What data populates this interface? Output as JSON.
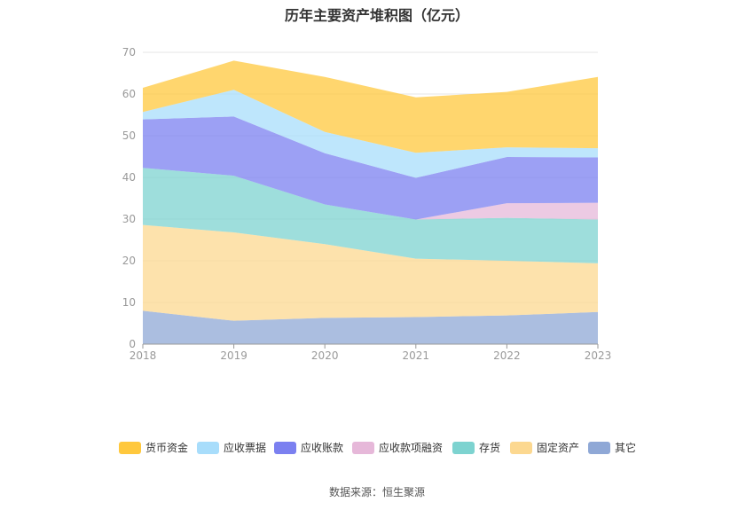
{
  "chart_data": {
    "type": "area",
    "title": "历年主要资产堆积图（亿元）",
    "x": [
      "2018",
      "2019",
      "2020",
      "2021",
      "2022",
      "2023"
    ],
    "ylim": [
      0,
      70
    ],
    "yticks": [
      "0",
      "10",
      "20",
      "30",
      "40",
      "50",
      "60",
      "70"
    ],
    "stacked": true,
    "grid": true,
    "legend_position": "bottom",
    "series": [
      {
        "name": "其它",
        "color": "#8fa8d6",
        "values": [
          8.0,
          5.6,
          6.3,
          6.5,
          6.9,
          7.7
        ]
      },
      {
        "name": "固定资产",
        "color": "#fcd890",
        "values": [
          20.6,
          21.2,
          17.7,
          14.0,
          13.1,
          11.7
        ]
      },
      {
        "name": "存货",
        "color": "#7dd3d0",
        "values": [
          13.7,
          13.6,
          9.5,
          9.4,
          10.3,
          10.5
        ]
      },
      {
        "name": "应收款项融资",
        "color": "#e6b8d9",
        "values": [
          0,
          0,
          0,
          0,
          3.5,
          4.0
        ]
      },
      {
        "name": "应收账款",
        "color": "#7b80f0",
        "values": [
          11.6,
          14.2,
          12.3,
          10.0,
          11.1,
          10.9
        ]
      },
      {
        "name": "应收票据",
        "color": "#a8ddfb",
        "values": [
          1.8,
          6.4,
          5.1,
          6.0,
          2.3,
          2.2
        ]
      },
      {
        "name": "货币资金",
        "color": "#ffc83d",
        "values": [
          5.8,
          7.0,
          13.2,
          13.3,
          13.3,
          17.1
        ]
      }
    ],
    "legend_order": [
      "货币资金",
      "应收票据",
      "应收账款",
      "应收款项融资",
      "存货",
      "固定资产",
      "其它"
    ]
  },
  "footer": {
    "source": "数据来源：恒生聚源"
  }
}
